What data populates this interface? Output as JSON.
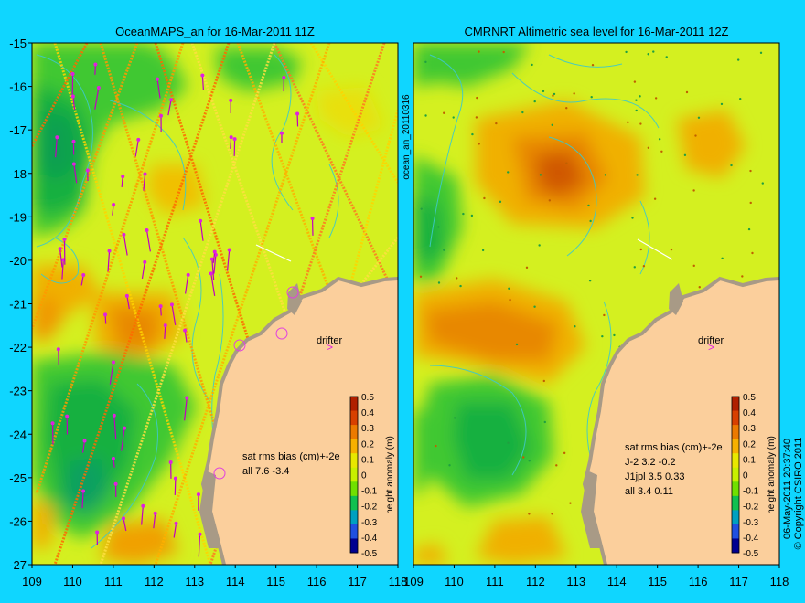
{
  "left_panel": {
    "title": "OceanMAPS_an for 16-Mar-2011 11Z",
    "side_label": "ocean_an_20110316",
    "stats_header": "sat rms bias (cm)+-2e",
    "stats_lines": [
      "all 7.6 -3.4"
    ],
    "drifter_label": "drifter"
  },
  "right_panel": {
    "title": "CMRNRT Altimetric sea level  for 16-Mar-2011 12Z",
    "stats_header": "sat rms bias (cm)+-2e",
    "stats_lines": [
      "J-2    3.2 -0.2",
      "J1jpl  3.5 0.33",
      "all 3.4 0.11"
    ],
    "drifter_label": "drifter"
  },
  "timestamp": "06-May-2011 20:37:40",
  "copyright": "© Copyright CSIRO 2011",
  "colorbar": {
    "label": "height anomaly (m)",
    "ticks": [
      "0.5",
      "0.4",
      "0.3",
      "0.2",
      "0.1",
      "0",
      "-0.1",
      "-0.2",
      "-0.3",
      "-0.4",
      "-0.5"
    ],
    "colors": [
      "#b02000",
      "#d84000",
      "#ec7a00",
      "#f7b000",
      "#e8e800",
      "#c8f000",
      "#70e000",
      "#10c050",
      "#00a0c0",
      "#2050e0",
      "#000090"
    ]
  },
  "axes": {
    "lat_ticks": [
      "-15",
      "-16",
      "-17",
      "-18",
      "-19",
      "-20",
      "-21",
      "-22",
      "-23",
      "-24",
      "-25",
      "-26",
      "-27"
    ],
    "lon_ticks": [
      "109",
      "110",
      "111",
      "112",
      "113",
      "114",
      "115",
      "116",
      "117",
      "118"
    ]
  },
  "colors": {
    "background": "#0fd6ff",
    "land": "#fbcf9c",
    "coast": "#a89a86",
    "contour": "#3ec9c9"
  }
}
